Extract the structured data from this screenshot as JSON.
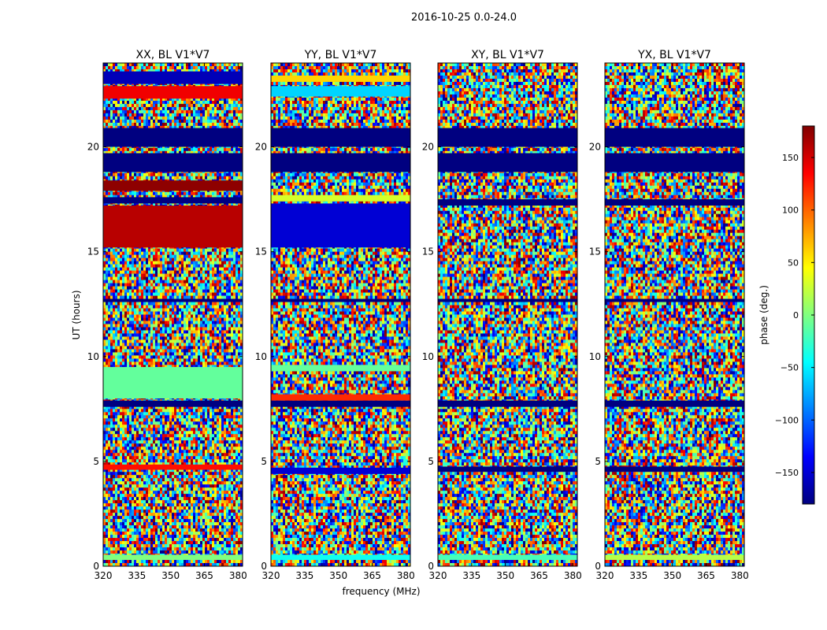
{
  "chart_data": {
    "type": "heatmap",
    "suptitle": "2016-10-25 0.0-24.0",
    "xlabel": "frequency (MHz)",
    "ylabel": "UT (hours)",
    "xlim": [
      320,
      382
    ],
    "ylim": [
      0,
      24
    ],
    "x_ticks": [
      320,
      335,
      350,
      365,
      380
    ],
    "y_ticks": [
      0,
      5,
      10,
      15,
      20
    ],
    "panels": [
      {
        "title": "XX, BL V1*V7",
        "bands": [
          {
            "from": 0.3,
            "to": 0.55,
            "phase": 0
          },
          {
            "from": 4.6,
            "to": 4.85,
            "phase": 130
          },
          {
            "from": 7.6,
            "to": 7.9,
            "phase": -180
          },
          {
            "from": 8.0,
            "to": 9.5,
            "phase": -10
          },
          {
            "from": 12.6,
            "to": 12.75,
            "phase": -180
          },
          {
            "from": 15.2,
            "to": 17.2,
            "phase": 160
          },
          {
            "from": 17.3,
            "to": 17.6,
            "phase": -180
          },
          {
            "from": 17.9,
            "to": 18.4,
            "phase": 175
          },
          {
            "from": 18.8,
            "to": 19.7,
            "phase": -180
          },
          {
            "from": 20.0,
            "to": 20.9,
            "phase": -180
          },
          {
            "from": 22.3,
            "to": 22.9,
            "phase": 140
          },
          {
            "from": 23.0,
            "to": 23.6,
            "phase": -160
          }
        ]
      },
      {
        "title": "YY, BL V1*V7",
        "bands": [
          {
            "from": 0.3,
            "to": 0.55,
            "phase": -40
          },
          {
            "from": 4.4,
            "to": 4.7,
            "phase": -150
          },
          {
            "from": 7.6,
            "to": 7.9,
            "phase": -180
          },
          {
            "from": 7.9,
            "to": 8.2,
            "phase": 120
          },
          {
            "from": 9.3,
            "to": 9.6,
            "phase": -10
          },
          {
            "from": 12.6,
            "to": 12.75,
            "phase": -180
          },
          {
            "from": 15.2,
            "to": 17.3,
            "phase": -150
          },
          {
            "from": 17.4,
            "to": 17.7,
            "phase": 30
          },
          {
            "from": 18.8,
            "to": 19.7,
            "phase": -180
          },
          {
            "from": 20.0,
            "to": 20.9,
            "phase": -180
          },
          {
            "from": 22.4,
            "to": 22.9,
            "phase": -60
          },
          {
            "from": 23.1,
            "to": 23.4,
            "phase": 60
          }
        ]
      },
      {
        "title": "XY, BL V1*V7",
        "bands": [
          {
            "from": 0.3,
            "to": 0.55,
            "phase": -20
          },
          {
            "from": 4.5,
            "to": 4.75,
            "phase": -180
          },
          {
            "from": 7.6,
            "to": 7.9,
            "phase": -180
          },
          {
            "from": 12.6,
            "to": 12.75,
            "phase": -180
          },
          {
            "from": 17.2,
            "to": 17.5,
            "phase": -180
          },
          {
            "from": 18.8,
            "to": 19.7,
            "phase": -180
          },
          {
            "from": 20.0,
            "to": 20.9,
            "phase": -180
          }
        ]
      },
      {
        "title": "YX, BL V1*V7",
        "bands": [
          {
            "from": 0.3,
            "to": 0.55,
            "phase": 20
          },
          {
            "from": 4.5,
            "to": 4.75,
            "phase": -180
          },
          {
            "from": 7.6,
            "to": 7.9,
            "phase": -180
          },
          {
            "from": 12.6,
            "to": 12.75,
            "phase": -180
          },
          {
            "from": 17.2,
            "to": 17.5,
            "phase": -180
          },
          {
            "from": 18.8,
            "to": 19.7,
            "phase": -180
          },
          {
            "from": 20.0,
            "to": 20.9,
            "phase": -180
          }
        ]
      }
    ],
    "colorbar": {
      "label": "phase (deg.)",
      "range": [
        -180,
        180
      ],
      "ticks": [
        150,
        100,
        50,
        0,
        -50,
        -100,
        -150
      ],
      "tick_labels": [
        "150",
        "100",
        "50",
        "0",
        "−50",
        "−100",
        "−150"
      ],
      "colormap": "jet"
    }
  }
}
